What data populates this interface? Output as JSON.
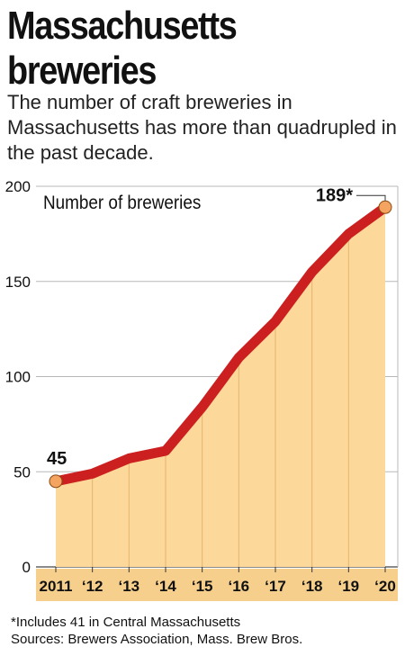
{
  "header": {
    "title_line1": "Massachusetts",
    "title_line2": "breweries",
    "subtitle": "The number of craft breweries in Massachusetts has more than quadrupled in the past decade."
  },
  "colors": {
    "area_fill": "#fcd89a",
    "line": "#cc1f1f",
    "marker": "#f4a460",
    "x_band": "#f6cf8c",
    "grid": "#b8b8b8",
    "text": "#111111"
  },
  "chart_data": {
    "type": "area",
    "title": "",
    "ylabel": "Number of breweries",
    "xlabel": "",
    "categories": [
      "2011",
      "‘12",
      "‘13",
      "‘14",
      "‘15",
      "‘16",
      "‘17",
      "‘18",
      "‘19",
      "‘20"
    ],
    "values": [
      45,
      49,
      57,
      61,
      84,
      110,
      129,
      155,
      175,
      189
    ],
    "ylim": [
      0,
      200
    ],
    "yticks": [
      "0",
      "50",
      "100",
      "150",
      "200"
    ],
    "grid": true,
    "annotations": [
      {
        "index": 0,
        "label": "45"
      },
      {
        "index": 9,
        "label": "189*"
      }
    ]
  },
  "footer": {
    "note": "*Includes 41 in Central Massachusetts",
    "sources": "Sources: Brewers Association, Mass. Brew Bros."
  }
}
